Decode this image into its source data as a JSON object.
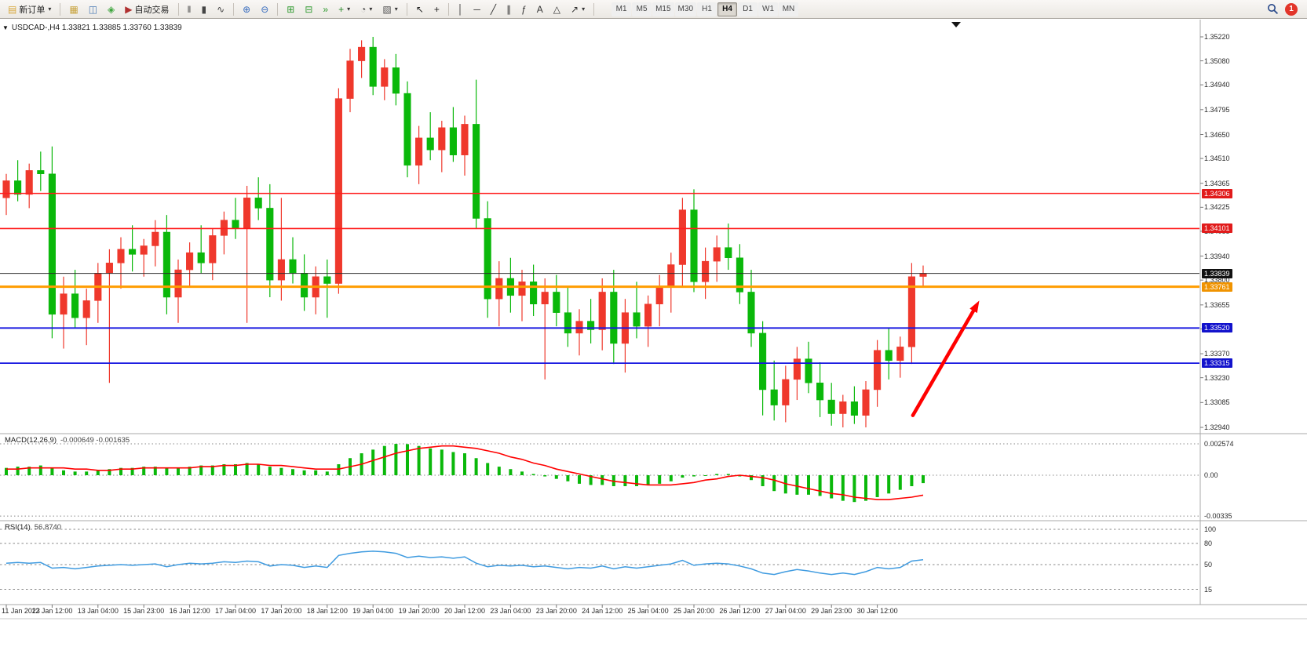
{
  "window": {
    "title_line": "USDCAD-,H4 1.33821 1.33885 1.33760 1.33839"
  },
  "toolbar": {
    "new_order_label": "新订单",
    "auto_trading_label": "自动交易",
    "left_icon_buttons": [
      "market-watch-icon",
      "data-window-icon",
      "navigator-icon"
    ],
    "chart_type_buttons": [
      "bar-chart-icon",
      "candlestick-chart-icon",
      "line-chart-icon"
    ],
    "zoom_buttons": [
      "zoom-in-icon",
      "zoom-out-icon"
    ],
    "window_buttons": [
      "tile-windows-icon",
      "auto-arrange-icon",
      "chart-shift-icon"
    ],
    "dropdown_buttons": [
      "indicators-icon",
      "periods-icon",
      "templates-icon"
    ],
    "cursor_buttons": [
      "cursor-icon",
      "crosshair-icon"
    ],
    "drawing_buttons": [
      "vertical-line-icon",
      "horizontal-line-icon",
      "trendline-icon",
      "channel-icon",
      "fibonacci-icon",
      "text-icon",
      "shapes-icon",
      "arrows-icon"
    ],
    "timeframes": [
      "M1",
      "M5",
      "M15",
      "M30",
      "H1",
      "H4",
      "D1",
      "W1",
      "MN"
    ],
    "active_timeframe": "H4",
    "notification_count": "1"
  },
  "chart_data": {
    "type": "candlestick",
    "symbol": "USDCAD-",
    "period": "H4",
    "current": {
      "open": 1.33821,
      "high": 1.33885,
      "low": 1.3376,
      "close": 1.33839
    },
    "bull_color": "#ef382c",
    "bear_color": "#0ab80a",
    "price_axis": {
      "max": 1.3522,
      "min": 1.3294,
      "ticks": [
        "1.35220",
        "1.35080",
        "1.34940",
        "1.34795",
        "1.34650",
        "1.34510",
        "1.34365",
        "1.34225",
        "1.34085",
        "1.33940",
        "1.33800",
        "1.33655",
        "1.33515",
        "1.33370",
        "1.33230",
        "1.33085",
        "1.32940"
      ]
    },
    "time_labels": [
      "11 Jan 2023",
      "12 Jan 12:00",
      "13 Jan 04:00",
      "15 Jan 23:00",
      "16 Jan 12:00",
      "17 Jan 04:00",
      "17 Jan 20:00",
      "18 Jan 12:00",
      "19 Jan 04:00",
      "19 Jan 20:00",
      "20 Jan 12:00",
      "23 Jan 04:00",
      "23 Jan 20:00",
      "24 Jan 12:00",
      "25 Jan 04:00",
      "25 Jan 20:00",
      "26 Jan 12:00",
      "27 Jan 04:00",
      "29 Jan 23:00",
      "30 Jan 12:00"
    ],
    "candles": [
      [
        1.3428,
        1.3442,
        1.3418,
        1.3438
      ],
      [
        1.3438,
        1.345,
        1.3426,
        1.343
      ],
      [
        1.343,
        1.3448,
        1.3422,
        1.3444
      ],
      [
        1.3444,
        1.3455,
        1.3432,
        1.3442
      ],
      [
        1.3442,
        1.3458,
        1.3346,
        1.336
      ],
      [
        1.336,
        1.3382,
        1.334,
        1.3372
      ],
      [
        1.3372,
        1.3386,
        1.3352,
        1.3358
      ],
      [
        1.3358,
        1.3375,
        1.3342,
        1.3368
      ],
      [
        1.3368,
        1.339,
        1.3355,
        1.3384
      ],
      [
        1.3384,
        1.3398,
        1.332,
        1.339
      ],
      [
        1.339,
        1.3405,
        1.3375,
        1.3398
      ],
      [
        1.3398,
        1.3412,
        1.3385,
        1.3395
      ],
      [
        1.3395,
        1.3404,
        1.3382,
        1.34
      ],
      [
        1.34,
        1.3415,
        1.3388,
        1.3408
      ],
      [
        1.3408,
        1.3418,
        1.336,
        1.337
      ],
      [
        1.337,
        1.3392,
        1.3355,
        1.3386
      ],
      [
        1.3386,
        1.3402,
        1.3376,
        1.3396
      ],
      [
        1.3396,
        1.3412,
        1.3384,
        1.339
      ],
      [
        1.339,
        1.341,
        1.338,
        1.3406
      ],
      [
        1.3406,
        1.342,
        1.3395,
        1.3415
      ],
      [
        1.3415,
        1.3428,
        1.3404,
        1.341
      ],
      [
        1.341,
        1.3435,
        1.3355,
        1.3428
      ],
      [
        1.3428,
        1.344,
        1.3415,
        1.3422
      ],
      [
        1.3422,
        1.3436,
        1.337,
        1.338
      ],
      [
        1.338,
        1.3428,
        1.3368,
        1.3392
      ],
      [
        1.3392,
        1.3405,
        1.3378,
        1.3384
      ],
      [
        1.3384,
        1.3395,
        1.3362,
        1.337
      ],
      [
        1.337,
        1.3388,
        1.336,
        1.3382
      ],
      [
        1.3382,
        1.3392,
        1.3358,
        1.3378
      ],
      [
        1.3378,
        1.3492,
        1.3372,
        1.3486
      ],
      [
        1.3486,
        1.3515,
        1.3478,
        1.3508
      ],
      [
        1.3508,
        1.352,
        1.3498,
        1.3516
      ],
      [
        1.3516,
        1.3522,
        1.3488,
        1.3493
      ],
      [
        1.3493,
        1.3509,
        1.3485,
        1.3504
      ],
      [
        1.3504,
        1.3512,
        1.3482,
        1.3489
      ],
      [
        1.3489,
        1.3496,
        1.344,
        1.3447
      ],
      [
        1.3447,
        1.347,
        1.3436,
        1.3463
      ],
      [
        1.3463,
        1.3478,
        1.345,
        1.3456
      ],
      [
        1.3456,
        1.3473,
        1.3443,
        1.3469
      ],
      [
        1.3469,
        1.3481,
        1.3449,
        1.3453
      ],
      [
        1.3453,
        1.3476,
        1.3441,
        1.3471
      ],
      [
        1.3471,
        1.3497,
        1.341,
        1.3416
      ],
      [
        1.3416,
        1.3426,
        1.3358,
        1.3369
      ],
      [
        1.3369,
        1.3391,
        1.3353,
        1.3381
      ],
      [
        1.3381,
        1.3393,
        1.3361,
        1.3371
      ],
      [
        1.3371,
        1.3386,
        1.3356,
        1.3379
      ],
      [
        1.3379,
        1.3389,
        1.3359,
        1.3366
      ],
      [
        1.3366,
        1.3381,
        1.3322,
        1.3373
      ],
      [
        1.3373,
        1.3383,
        1.3353,
        1.3361
      ],
      [
        1.3361,
        1.3376,
        1.3341,
        1.3349
      ],
      [
        1.3349,
        1.3363,
        1.3336,
        1.3356
      ],
      [
        1.3356,
        1.3369,
        1.3343,
        1.3351
      ],
      [
        1.3351,
        1.3381,
        1.3339,
        1.3373
      ],
      [
        1.3373,
        1.3386,
        1.3331,
        1.3343
      ],
      [
        1.3343,
        1.3369,
        1.3326,
        1.3361
      ],
      [
        1.3361,
        1.3379,
        1.3346,
        1.3353
      ],
      [
        1.3353,
        1.3371,
        1.3341,
        1.3366
      ],
      [
        1.3366,
        1.3383,
        1.3353,
        1.3376
      ],
      [
        1.3376,
        1.3396,
        1.3361,
        1.3389
      ],
      [
        1.3389,
        1.3428,
        1.3376,
        1.3421
      ],
      [
        1.3421,
        1.3433,
        1.3373,
        1.3379
      ],
      [
        1.3379,
        1.3399,
        1.3369,
        1.3391
      ],
      [
        1.3391,
        1.3406,
        1.3379,
        1.3399
      ],
      [
        1.3399,
        1.3413,
        1.3386,
        1.3393
      ],
      [
        1.3393,
        1.3401,
        1.3366,
        1.3373
      ],
      [
        1.3373,
        1.3386,
        1.3341,
        1.3349
      ],
      [
        1.3349,
        1.3356,
        1.3301,
        1.3316
      ],
      [
        1.3316,
        1.3333,
        1.3298,
        1.3307
      ],
      [
        1.3307,
        1.333,
        1.3297,
        1.3322
      ],
      [
        1.3322,
        1.3341,
        1.331,
        1.3334
      ],
      [
        1.3334,
        1.3344,
        1.3314,
        1.332
      ],
      [
        1.332,
        1.3332,
        1.33,
        1.331
      ],
      [
        1.331,
        1.332,
        1.3295,
        1.3302
      ],
      [
        1.3302,
        1.3313,
        1.3294,
        1.3309
      ],
      [
        1.3309,
        1.3318,
        1.3296,
        1.3301
      ],
      [
        1.3301,
        1.3321,
        1.3294,
        1.3316
      ],
      [
        1.3316,
        1.3345,
        1.3306,
        1.3339
      ],
      [
        1.3339,
        1.3352,
        1.3322,
        1.3333
      ],
      [
        1.3333,
        1.3347,
        1.3323,
        1.3341
      ],
      [
        1.3341,
        1.339,
        1.3331,
        1.3382
      ],
      [
        1.33821,
        1.33885,
        1.3376,
        1.33839
      ]
    ],
    "hlines": [
      {
        "price": 1.34306,
        "label": "1.34306",
        "color": "#ff1c1c",
        "badge_color": "#e11b1b",
        "width": 1.6
      },
      {
        "price": 1.34101,
        "label": "1.34101",
        "color": "#ff1c1c",
        "badge_color": "#e11b1b",
        "width": 1.6
      },
      {
        "price": 1.33761,
        "label": "1.33761",
        "color": "#ff9c00",
        "badge_color": "#f09300",
        "width": 3
      },
      {
        "price": 1.3352,
        "label": "1.33520",
        "color": "#1414e0",
        "badge_color": "#1212cc",
        "width": 1.8
      },
      {
        "price": 1.33315,
        "label": "1.33315",
        "color": "#1414e0",
        "badge_color": "#1212cc",
        "width": 1.8
      }
    ],
    "current_price_line": {
      "price": 1.33839,
      "label": "1.33839",
      "color": "#2a2a2a",
      "badge_color": "#111111"
    },
    "trend_arrow": {
      "from": {
        "index": 79.1,
        "price": 1.3301
      },
      "to": {
        "index": 84.9,
        "price": 1.3368
      },
      "color": "#ff0000"
    },
    "macd": {
      "name": "MACD(12,26,9)",
      "values_text": "-0.000649 -0.001635",
      "value": -0.000649,
      "signal_value": -0.001635,
      "axis_labels": [
        "0.002574",
        "0.00",
        "-0.00335"
      ],
      "axis_max": 0.002574,
      "axis_min": -0.00335,
      "histogram_color": "#0ab80a",
      "signal_color": "#ff0000",
      "histogram": [
        0.0006,
        0.0007,
        0.0007,
        0.0008,
        0.0006,
        0.0004,
        0.0003,
        0.0003,
        0.0004,
        0.0005,
        0.0006,
        0.0006,
        0.0007,
        0.0007,
        0.0006,
        0.0006,
        0.0007,
        0.0008,
        0.0008,
        0.0009,
        0.0009,
        0.001,
        0.0009,
        0.0007,
        0.0006,
        0.0005,
        0.0004,
        0.0004,
        0.0003,
        0.0009,
        0.0014,
        0.0018,
        0.0021,
        0.0024,
        0.00257,
        0.00255,
        0.0024,
        0.0022,
        0.0021,
        0.0019,
        0.0018,
        0.0014,
        0.001,
        0.0007,
        0.0005,
        0.0003,
        0.0001,
        -0.0001,
        -0.0003,
        -0.0005,
        -0.0007,
        -0.0008,
        -0.0008,
        -0.0009,
        -0.0009,
        -0.0009,
        -0.0008,
        -0.0007,
        -0.0005,
        -0.0002,
        -0.0001,
        0.0,
        0.0001,
        0.0001,
        -0.0001,
        -0.0004,
        -0.0009,
        -0.0013,
        -0.0015,
        -0.0016,
        -0.0016,
        -0.0017,
        -0.0019,
        -0.0021,
        -0.0022,
        -0.0021,
        -0.0018,
        -0.0015,
        -0.0012,
        -0.0009,
        -0.000649
      ],
      "signal": [
        0.0005,
        0.0005,
        0.0006,
        0.0006,
        0.0006,
        0.0006,
        0.0005,
        0.0005,
        0.0004,
        0.0004,
        0.0005,
        0.0005,
        0.0006,
        0.0006,
        0.0006,
        0.0006,
        0.0006,
        0.0007,
        0.0007,
        0.0008,
        0.0008,
        0.0009,
        0.0009,
        0.0008,
        0.0008,
        0.0007,
        0.0006,
        0.0005,
        0.0005,
        0.0005,
        0.0007,
        0.0009,
        0.0012,
        0.0015,
        0.0018,
        0.002,
        0.0022,
        0.0023,
        0.0024,
        0.0024,
        0.0023,
        0.0022,
        0.002,
        0.0018,
        0.0015,
        0.0013,
        0.001,
        0.0008,
        0.0005,
        0.0003,
        0.0001,
        -0.0001,
        -0.0003,
        -0.0005,
        -0.0006,
        -0.0007,
        -0.0008,
        -0.0008,
        -0.0008,
        -0.0007,
        -0.0006,
        -0.0004,
        -0.0003,
        -0.0001,
        0.0,
        -0.0001,
        -0.0002,
        -0.0004,
        -0.0007,
        -0.0009,
        -0.0011,
        -0.0013,
        -0.0015,
        -0.0016,
        -0.0018,
        -0.0019,
        -0.002,
        -0.002,
        -0.0019,
        -0.0018,
        -0.001635
      ]
    },
    "rsi": {
      "name": "RSI(14)",
      "value_text": "56.8740",
      "value": 56.874,
      "line_color": "#3f9be0",
      "levels": [
        "100",
        "80",
        "50",
        "15"
      ],
      "series": [
        52,
        53,
        52,
        53,
        45,
        46,
        44,
        46,
        48,
        49,
        50,
        49,
        50,
        51,
        47,
        50,
        52,
        51,
        52,
        54,
        53,
        55,
        54,
        48,
        50,
        49,
        46,
        48,
        46,
        63,
        66,
        68,
        69,
        68,
        66,
        60,
        62,
        60,
        61,
        59,
        61,
        52,
        47,
        49,
        48,
        49,
        47,
        48,
        46,
        44,
        46,
        45,
        48,
        44,
        47,
        45,
        47,
        49,
        51,
        56,
        49,
        51,
        52,
        51,
        48,
        44,
        38,
        36,
        40,
        43,
        41,
        38,
        36,
        38,
        36,
        40,
        46,
        44,
        46,
        55,
        56.874
      ]
    }
  }
}
